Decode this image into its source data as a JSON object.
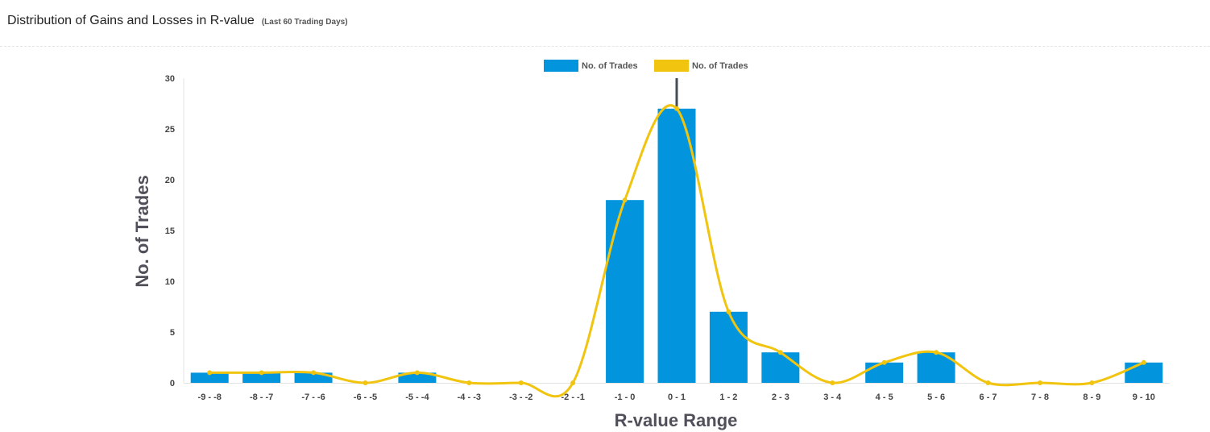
{
  "header": {
    "title": "Distribution of Gains and Losses in R-value",
    "subtitle": "(Last 60 Trading Days)"
  },
  "chart_data": {
    "type": "bar",
    "title": "Distribution of Gains and Losses in R-value",
    "subtitle": "(Last 60 Trading Days)",
    "xlabel": "R-value Range",
    "ylabel": "No. of Trades",
    "ylim": [
      0,
      30
    ],
    "yticks": [
      0,
      5,
      10,
      15,
      20,
      25,
      30
    ],
    "grid": false,
    "legend_position": "top-center",
    "categories": [
      "-9 - -8",
      "-8 - -7",
      "-7 - -6",
      "-6 - -5",
      "-5 - -4",
      "-4 - -3",
      "-3 - -2",
      "-2 - -1",
      "-1 - 0",
      "0 - 1",
      "1 - 2",
      "2 - 3",
      "3 - 4",
      "4 - 5",
      "5 - 6",
      "6 - 7",
      "7 - 8",
      "8 - 9",
      "9 - 10"
    ],
    "series": [
      {
        "name": "No. of Trades",
        "type": "bar",
        "color": "#0295dd",
        "values": [
          1,
          1,
          1,
          0,
          1,
          0,
          0,
          0,
          18,
          27,
          7,
          3,
          0,
          2,
          3,
          0,
          0,
          0,
          2
        ]
      },
      {
        "name": "No. of Trades",
        "type": "line",
        "smooth": true,
        "color": "#f1c40f",
        "values": [
          1,
          1,
          1,
          0,
          1,
          0,
          0,
          0,
          18,
          27,
          7,
          3,
          0,
          2,
          3,
          0,
          0,
          0,
          2
        ]
      }
    ],
    "marker_line": {
      "category": "0 - 1",
      "color": "#454d55"
    }
  }
}
